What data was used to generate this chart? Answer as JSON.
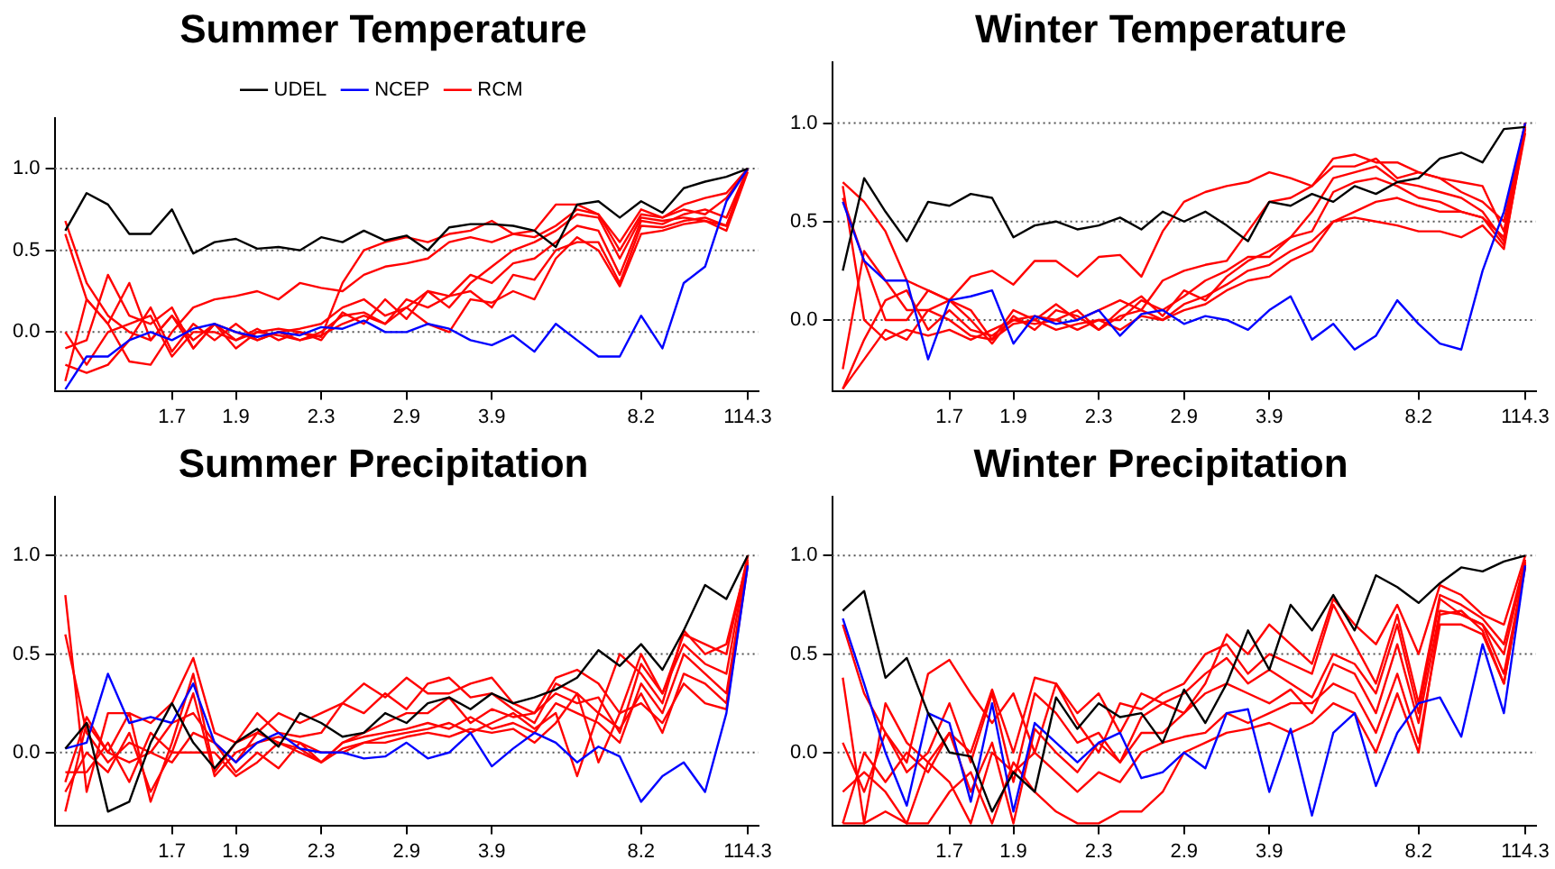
{
  "chart_data": [
    {
      "type": "line",
      "title": "Summer Temperature",
      "legend": "top",
      "marker": "none",
      "categories": [
        null,
        null,
        null,
        null,
        null,
        "1.7",
        null,
        null,
        "1.9",
        null,
        null,
        null,
        "2.3",
        null,
        null,
        null,
        "2.9",
        null,
        null,
        null,
        "3.9",
        null,
        null,
        null,
        null,
        null,
        null,
        "8.2",
        null,
        null,
        null,
        null,
        "114.3"
      ],
      "ylim": [
        -0.36,
        1.31
      ],
      "yticks": [
        {
          "value": 0,
          "label": "0.0"
        },
        {
          "value": 0.5,
          "label": "0.5"
        },
        {
          "value": 1,
          "label": "1.0"
        }
      ],
      "ref_lines": [
        {
          "axis": "y",
          "value": 0,
          "color": "#555555",
          "line_style": "dotted"
        },
        {
          "axis": "y",
          "value": 0.5,
          "color": "#555555",
          "line_style": "dotted"
        },
        {
          "axis": "y",
          "value": 1,
          "color": "#555555",
          "line_style": "dotted"
        }
      ],
      "series": [
        {
          "name": "UDEL",
          "color": "#000000",
          "values": [
            0.62,
            0.85,
            0.78,
            0.6,
            0.6,
            0.75,
            0.48,
            0.55,
            0.57,
            0.51,
            0.52,
            0.5,
            0.58,
            0.55,
            0.62,
            0.56,
            0.59,
            0.5,
            0.64,
            0.66,
            0.66,
            0.65,
            0.62,
            0.52,
            0.78,
            0.8,
            0.7,
            0.8,
            0.73,
            0.88,
            0.92,
            0.95,
            1.0
          ]
        },
        {
          "name": "NCEP",
          "color": "#0000ff",
          "values": [
            -0.35,
            -0.15,
            -0.15,
            -0.05,
            0.0,
            -0.05,
            0.02,
            0.05,
            0.0,
            -0.03,
            0.0,
            -0.02,
            0.03,
            0.02,
            0.07,
            0.0,
            0.0,
            0.05,
            0.02,
            -0.05,
            -0.08,
            -0.02,
            -0.12,
            0.05,
            -0.05,
            -0.15,
            -0.15,
            0.1,
            -0.1,
            0.3,
            0.4,
            0.8,
            1.0
          ]
        },
        {
          "name": "RCM",
          "color": "#ff0000",
          "values": [
            0.68,
            0.3,
            0.1,
            0.0,
            -0.05,
            0.1,
            -0.1,
            0.05,
            -0.05,
            0.0,
            0.02,
            0.0,
            -0.03,
            0.3,
            0.5,
            0.55,
            0.58,
            0.55,
            0.6,
            0.62,
            0.68,
            0.6,
            0.58,
            0.65,
            0.75,
            0.72,
            0.55,
            0.75,
            0.7,
            0.78,
            0.82,
            0.85,
            1.0
          ]
        },
        {
          "color": "#ff0000",
          "values": [
            0.6,
            0.2,
            0.05,
            -0.18,
            -0.2,
            0.0,
            0.15,
            0.2,
            0.22,
            0.25,
            0.2,
            0.3,
            0.27,
            0.25,
            0.35,
            0.4,
            0.42,
            0.45,
            0.55,
            0.58,
            0.55,
            0.6,
            0.62,
            0.78,
            0.78,
            0.72,
            0.5,
            0.72,
            0.7,
            0.75,
            0.72,
            0.82,
            1.0
          ]
        },
        {
          "color": "#ff0000",
          "values": [
            -0.1,
            -0.05,
            0.35,
            0.1,
            0.05,
            0.15,
            -0.1,
            0.05,
            0.0,
            -0.05,
            0.0,
            0.02,
            0.05,
            0.15,
            0.2,
            0.1,
            0.15,
            0.25,
            0.15,
            0.3,
            0.4,
            0.5,
            0.55,
            0.62,
            0.72,
            0.7,
            0.45,
            0.7,
            0.68,
            0.7,
            0.68,
            0.65,
            1.0
          ]
        },
        {
          "color": "#ff0000",
          "values": [
            -0.3,
            0.2,
            0.05,
            0.3,
            -0.05,
            0.1,
            -0.05,
            0.05,
            -0.1,
            0.0,
            -0.02,
            -0.05,
            0.0,
            0.1,
            0.12,
            0.05,
            0.2,
            0.15,
            0.22,
            0.35,
            0.3,
            0.42,
            0.45,
            0.55,
            0.65,
            0.62,
            0.35,
            0.68,
            0.66,
            0.72,
            0.75,
            0.7,
            1.0
          ]
        },
        {
          "color": "#ff0000",
          "values": [
            0.0,
            -0.2,
            0.0,
            0.05,
            0.1,
            -0.15,
            0.0,
            0.0,
            -0.05,
            0.02,
            -0.05,
            0.0,
            -0.05,
            0.12,
            0.05,
            0.2,
            0.08,
            0.25,
            0.22,
            0.25,
            0.15,
            0.35,
            0.32,
            0.5,
            0.55,
            0.55,
            0.3,
            0.65,
            0.64,
            0.68,
            0.7,
            0.65,
            1.0
          ]
        },
        {
          "color": "#ff0000",
          "values": [
            -0.2,
            -0.25,
            -0.2,
            -0.05,
            0.15,
            -0.12,
            0.05,
            -0.05,
            0.05,
            -0.05,
            0.0,
            -0.05,
            -0.02,
            0.05,
            0.1,
            0.05,
            0.15,
            0.05,
            0.0,
            0.2,
            0.18,
            0.25,
            0.2,
            0.45,
            0.58,
            0.5,
            0.28,
            0.6,
            0.62,
            0.66,
            0.68,
            0.62,
            0.98
          ]
        }
      ]
    },
    {
      "type": "line",
      "title": "Winter Temperature",
      "marker": "none",
      "categories": [
        null,
        null,
        null,
        null,
        null,
        "1.7",
        null,
        null,
        "1.9",
        null,
        null,
        null,
        "2.3",
        null,
        null,
        null,
        "2.9",
        null,
        null,
        null,
        "3.9",
        null,
        null,
        null,
        null,
        null,
        null,
        "8.2",
        null,
        null,
        null,
        null,
        "114.3"
      ],
      "ylim": [
        -0.36,
        1.31
      ],
      "yticks": [
        {
          "value": 0,
          "label": "0.0"
        },
        {
          "value": 0.5,
          "label": "0.5"
        },
        {
          "value": 1,
          "label": "1.0"
        }
      ],
      "ref_lines": [
        {
          "axis": "y",
          "value": 0,
          "color": "#555555",
          "line_style": "dotted"
        },
        {
          "axis": "y",
          "value": 0.5,
          "color": "#555555",
          "line_style": "dotted"
        },
        {
          "axis": "y",
          "value": 1,
          "color": "#555555",
          "line_style": "dotted"
        }
      ],
      "series": [
        {
          "color": "#000000",
          "values": [
            0.25,
            0.72,
            0.55,
            0.4,
            0.6,
            0.58,
            0.64,
            0.62,
            0.42,
            0.48,
            0.5,
            0.46,
            0.48,
            0.52,
            0.46,
            0.55,
            0.5,
            0.55,
            0.48,
            0.4,
            0.6,
            0.58,
            0.64,
            0.6,
            0.68,
            0.64,
            0.7,
            0.72,
            0.82,
            0.85,
            0.8,
            0.97,
            0.98
          ]
        },
        {
          "color": "#0000ff",
          "values": [
            0.6,
            0.3,
            0.2,
            0.2,
            -0.2,
            0.1,
            0.12,
            0.15,
            -0.12,
            0.02,
            -0.02,
            0.0,
            0.05,
            -0.08,
            0.03,
            0.05,
            -0.02,
            0.02,
            0.0,
            -0.05,
            0.05,
            0.12,
            -0.1,
            -0.02,
            -0.15,
            -0.08,
            0.1,
            -0.02,
            -0.12,
            -0.15,
            0.25,
            0.55,
            1.0
          ]
        },
        {
          "color": "#ff0000",
          "values": [
            0.7,
            0.6,
            0.45,
            0.2,
            0.15,
            0.1,
            0.22,
            0.25,
            0.18,
            0.3,
            0.3,
            0.22,
            0.32,
            0.33,
            0.22,
            0.45,
            0.6,
            0.65,
            0.68,
            0.7,
            0.75,
            0.72,
            0.68,
            0.82,
            0.84,
            0.8,
            0.8,
            0.75,
            0.72,
            0.7,
            0.68,
            0.45,
            1.0
          ]
        },
        {
          "color": "#ff0000",
          "values": [
            0.62,
            0.3,
            0.0,
            0.0,
            0.15,
            0.1,
            0.05,
            -0.1,
            0.05,
            0.0,
            0.08,
            0.0,
            0.05,
            0.1,
            0.05,
            0.2,
            0.25,
            0.28,
            0.3,
            0.45,
            0.6,
            0.62,
            0.68,
            0.78,
            0.78,
            0.82,
            0.72,
            0.75,
            0.72,
            0.65,
            0.6,
            0.5,
            1.0
          ]
        },
        {
          "color": "#ff0000",
          "values": [
            -0.25,
            0.35,
            0.2,
            0.05,
            0.05,
            0.1,
            0.0,
            -0.12,
            0.02,
            -0.05,
            0.05,
            0.02,
            -0.05,
            0.05,
            0.12,
            0.02,
            0.15,
            0.1,
            0.22,
            0.3,
            0.35,
            0.42,
            0.55,
            0.72,
            0.75,
            0.78,
            0.7,
            0.68,
            0.65,
            0.62,
            0.55,
            0.4,
            1.0
          ]
        },
        {
          "color": "#ff0000",
          "values": [
            -0.35,
            -0.1,
            0.1,
            0.15,
            -0.05,
            0.05,
            -0.05,
            -0.08,
            0.0,
            0.02,
            0.0,
            -0.05,
            0.0,
            0.0,
            0.1,
            0.05,
            0.12,
            0.2,
            0.25,
            0.32,
            0.32,
            0.42,
            0.45,
            0.65,
            0.7,
            0.72,
            0.68,
            0.62,
            0.6,
            0.55,
            0.52,
            0.38,
            0.95
          ]
        },
        {
          "color": "#ff0000",
          "values": [
            -0.35,
            -0.2,
            -0.05,
            -0.1,
            0.05,
            0.0,
            -0.08,
            -0.1,
            -0.02,
            0.0,
            -0.05,
            -0.02,
            0.0,
            -0.05,
            0.02,
            0.0,
            0.08,
            0.12,
            0.18,
            0.25,
            0.28,
            0.35,
            0.4,
            0.5,
            0.55,
            0.6,
            0.62,
            0.58,
            0.55,
            0.55,
            0.52,
            0.42,
            0.98
          ]
        },
        {
          "color": "#ff0000",
          "values": [
            0.68,
            0.0,
            -0.1,
            -0.05,
            -0.08,
            -0.05,
            -0.1,
            -0.05,
            0.0,
            -0.02,
            0.0,
            0.05,
            -0.05,
            0.02,
            0.05,
            0.0,
            0.05,
            0.08,
            0.15,
            0.2,
            0.22,
            0.3,
            0.35,
            0.5,
            0.52,
            0.5,
            0.48,
            0.45,
            0.45,
            0.42,
            0.48,
            0.36,
            0.97
          ]
        }
      ]
    },
    {
      "type": "line",
      "title": "Summer Precipitation",
      "marker": "none",
      "categories": [
        null,
        null,
        null,
        null,
        null,
        "1.7",
        null,
        null,
        "1.9",
        null,
        null,
        null,
        "2.3",
        null,
        null,
        null,
        "2.9",
        null,
        null,
        null,
        "3.9",
        null,
        null,
        null,
        null,
        null,
        null,
        "8.2",
        null,
        null,
        null,
        null,
        "114.3"
      ],
      "ylim": [
        -0.37,
        1.3
      ],
      "yticks": [
        {
          "value": 0,
          "label": "0.0"
        },
        {
          "value": 0.5,
          "label": "0.5"
        },
        {
          "value": 1,
          "label": "1.0"
        }
      ],
      "ref_lines": [
        {
          "axis": "y",
          "value": 0,
          "color": "#555555",
          "line_style": "dotted"
        },
        {
          "axis": "y",
          "value": 0.5,
          "color": "#555555",
          "line_style": "dotted"
        },
        {
          "axis": "y",
          "value": 1,
          "color": "#555555",
          "line_style": "dotted"
        }
      ],
      "series": [
        {
          "color": "#000000",
          "values": [
            0.02,
            0.15,
            -0.3,
            -0.25,
            0.05,
            0.25,
            0.05,
            -0.08,
            0.05,
            0.12,
            0.03,
            0.2,
            0.15,
            0.08,
            0.1,
            0.2,
            0.15,
            0.25,
            0.28,
            0.22,
            0.3,
            0.25,
            0.28,
            0.32,
            0.38,
            0.52,
            0.44,
            0.55,
            0.42,
            0.62,
            0.85,
            0.78,
            1.0
          ]
        },
        {
          "color": "#0000ff",
          "values": [
            0.02,
            0.05,
            0.4,
            0.15,
            0.18,
            0.15,
            0.35,
            0.05,
            -0.05,
            0.05,
            0.1,
            0.02,
            0.0,
            0.0,
            -0.03,
            -0.02,
            0.05,
            -0.03,
            0.0,
            0.1,
            -0.07,
            0.02,
            0.1,
            0.05,
            -0.05,
            0.03,
            -0.02,
            -0.25,
            -0.12,
            -0.05,
            -0.2,
            0.2,
            0.95
          ]
        },
        {
          "color": "#ff0000",
          "values": [
            0.8,
            -0.2,
            0.2,
            0.2,
            0.15,
            0.25,
            0.48,
            0.1,
            0.05,
            0.2,
            0.1,
            0.08,
            0.1,
            0.25,
            0.35,
            0.28,
            0.38,
            0.3,
            0.3,
            0.35,
            0.38,
            0.25,
            0.2,
            0.38,
            0.42,
            0.35,
            0.2,
            0.5,
            0.3,
            0.6,
            0.55,
            0.5,
            1.0
          ]
        },
        {
          "color": "#ff0000",
          "values": [
            -0.3,
            0.15,
            0.0,
            0.2,
            -0.25,
            0.05,
            0.4,
            -0.1,
            0.05,
            0.1,
            0.2,
            0.15,
            0.2,
            0.25,
            0.2,
            0.3,
            0.22,
            0.35,
            0.38,
            0.28,
            0.3,
            0.22,
            0.15,
            0.35,
            0.3,
            0.2,
            0.5,
            0.4,
            0.25,
            0.62,
            0.5,
            0.55,
            0.98
          ]
        },
        {
          "color": "#ff0000",
          "values": [
            0.6,
            0.1,
            -0.05,
            0.05,
            0.0,
            0.15,
            0.2,
            0.05,
            -0.05,
            0.1,
            0.05,
            0.0,
            -0.05,
            0.05,
            0.1,
            0.15,
            0.2,
            0.2,
            0.28,
            0.15,
            0.22,
            0.18,
            0.2,
            0.3,
            0.25,
            0.28,
            0.1,
            0.45,
            0.3,
            0.55,
            0.45,
            0.4,
            1.0
          ]
        },
        {
          "color": "#ff0000",
          "values": [
            -0.2,
            0.0,
            -0.1,
            0.1,
            -0.2,
            0.0,
            0.3,
            -0.12,
            0.0,
            0.05,
            0.08,
            0.05,
            -0.05,
            0.05,
            0.08,
            0.1,
            0.12,
            0.15,
            0.12,
            0.18,
            0.12,
            0.15,
            0.1,
            0.25,
            0.2,
            0.15,
            0.05,
            0.35,
            0.2,
            0.5,
            0.4,
            0.3,
            0.97
          ]
        },
        {
          "color": "#ff0000",
          "values": [
            -0.15,
            0.18,
            0.0,
            -0.05,
            0.0,
            -0.05,
            0.1,
            0.05,
            -0.1,
            0.0,
            -0.08,
            0.05,
            0.0,
            0.0,
            0.05,
            0.08,
            0.1,
            0.12,
            0.15,
            0.1,
            0.15,
            0.2,
            0.12,
            0.2,
            -0.12,
            0.2,
            0.12,
            0.3,
            0.1,
            0.4,
            0.35,
            0.25,
            0.96
          ]
        },
        {
          "color": "#ff0000",
          "values": [
            -0.1,
            -0.1,
            0.05,
            -0.15,
            0.1,
            0.0,
            0.0,
            0.0,
            -0.12,
            -0.05,
            0.05,
            0.02,
            -0.05,
            0.02,
            0.05,
            0.05,
            0.08,
            0.1,
            0.08,
            0.12,
            0.1,
            0.12,
            0.05,
            0.15,
            0.3,
            -0.05,
            0.2,
            0.25,
            0.15,
            0.35,
            0.25,
            0.22,
            0.95
          ]
        }
      ]
    },
    {
      "type": "line",
      "title": "Winter Precipitation",
      "marker": "none",
      "categories": [
        null,
        null,
        null,
        null,
        null,
        "1.7",
        null,
        null,
        "1.9",
        null,
        null,
        null,
        "2.3",
        null,
        null,
        null,
        "2.9",
        null,
        null,
        null,
        "3.9",
        null,
        null,
        null,
        null,
        null,
        null,
        "8.2",
        null,
        null,
        null,
        null,
        "114.3"
      ],
      "ylim": [
        -0.37,
        1.3
      ],
      "yticks": [
        {
          "value": 0,
          "label": "0.0"
        },
        {
          "value": 0.5,
          "label": "0.5"
        },
        {
          "value": 1,
          "label": "1.0"
        }
      ],
      "ref_lines": [
        {
          "axis": "y",
          "value": 0,
          "color": "#555555",
          "line_style": "dotted"
        },
        {
          "axis": "y",
          "value": 0.5,
          "color": "#555555",
          "line_style": "dotted"
        },
        {
          "axis": "y",
          "value": 1,
          "color": "#555555",
          "line_style": "dotted"
        }
      ],
      "series": [
        {
          "color": "#000000",
          "values": [
            0.72,
            0.82,
            0.38,
            0.48,
            0.2,
            0.0,
            -0.02,
            -0.3,
            -0.1,
            -0.2,
            0.28,
            0.12,
            0.25,
            0.18,
            0.2,
            0.05,
            0.32,
            0.15,
            0.35,
            0.62,
            0.42,
            0.75,
            0.62,
            0.8,
            0.62,
            0.9,
            0.84,
            0.76,
            0.86,
            0.94,
            0.92,
            0.97,
            1.0
          ]
        },
        {
          "color": "#0000ff",
          "values": [
            0.68,
            0.35,
            0.0,
            -0.27,
            0.2,
            0.15,
            -0.25,
            0.25,
            -0.3,
            0.15,
            0.05,
            -0.05,
            0.05,
            0.1,
            -0.13,
            -0.1,
            0.0,
            -0.08,
            0.2,
            0.22,
            -0.2,
            0.12,
            -0.32,
            0.1,
            0.2,
            -0.17,
            0.1,
            0.25,
            0.28,
            0.08,
            0.55,
            0.2,
            0.95
          ]
        },
        {
          "color": "#ff0000",
          "values": [
            0.65,
            0.3,
            0.1,
            -0.05,
            0.4,
            0.47,
            0.3,
            0.15,
            0.3,
            0.0,
            0.35,
            0.2,
            0.3,
            0.1,
            0.3,
            0.25,
            0.2,
            0.35,
            0.6,
            0.5,
            0.65,
            0.55,
            0.45,
            0.78,
            0.65,
            0.55,
            0.75,
            0.5,
            0.85,
            0.8,
            0.7,
            0.65,
            1.0
          ]
        },
        {
          "color": "#ff0000",
          "values": [
            0.38,
            -0.36,
            0.25,
            0.05,
            -0.05,
            0.1,
            0.0,
            0.32,
            0.0,
            0.38,
            0.35,
            0.15,
            0.0,
            0.25,
            0.22,
            0.3,
            0.35,
            0.5,
            0.55,
            0.4,
            0.5,
            0.45,
            0.4,
            0.75,
            0.55,
            0.35,
            0.7,
            0.25,
            0.8,
            0.75,
            0.68,
            0.55,
            0.98
          ]
        },
        {
          "color": "#ff0000",
          "values": [
            0.05,
            -0.2,
            0.1,
            -0.1,
            0.0,
            0.25,
            -0.05,
            0.3,
            -0.15,
            0.3,
            0.2,
            0.05,
            0.1,
            -0.05,
            0.18,
            0.25,
            0.3,
            0.4,
            0.48,
            0.35,
            0.42,
            0.35,
            0.28,
            0.5,
            0.45,
            0.3,
            0.65,
            0.2,
            0.78,
            0.7,
            0.65,
            0.5,
            0.97
          ]
        },
        {
          "color": "#ff0000",
          "values": [
            -0.36,
            0.0,
            -0.15,
            0.0,
            -0.1,
            0.1,
            -0.2,
            0.05,
            -0.36,
            0.12,
            0.0,
            -0.1,
            0.05,
            -0.05,
            0.1,
            0.1,
            0.2,
            0.3,
            0.35,
            0.3,
            0.25,
            0.32,
            0.2,
            0.45,
            0.4,
            0.2,
            0.55,
            0.15,
            0.72,
            0.7,
            0.65,
            0.4,
            0.95
          ]
        },
        {
          "color": "#ff0000",
          "values": [
            -0.2,
            -0.1,
            -0.2,
            -0.36,
            -0.05,
            -0.15,
            -0.36,
            0.0,
            -0.1,
            0.0,
            -0.1,
            -0.2,
            -0.1,
            -0.15,
            0.0,
            0.05,
            0.08,
            0.1,
            0.2,
            0.15,
            0.2,
            0.25,
            0.25,
            0.35,
            0.3,
            0.1,
            0.4,
            0.05,
            0.65,
            0.65,
            0.6,
            0.35,
            0.96
          ]
        },
        {
          "color": "#ff0000",
          "values": [
            -0.36,
            -0.36,
            -0.3,
            -0.36,
            -0.36,
            -0.2,
            -0.1,
            -0.36,
            -0.05,
            -0.2,
            -0.3,
            -0.36,
            -0.36,
            -0.3,
            -0.3,
            -0.2,
            0.0,
            0.05,
            0.1,
            0.12,
            0.15,
            0.1,
            0.15,
            0.25,
            0.2,
            0.0,
            0.3,
            0.0,
            0.7,
            0.72,
            0.62,
            0.35,
            0.94
          ]
        }
      ]
    }
  ]
}
